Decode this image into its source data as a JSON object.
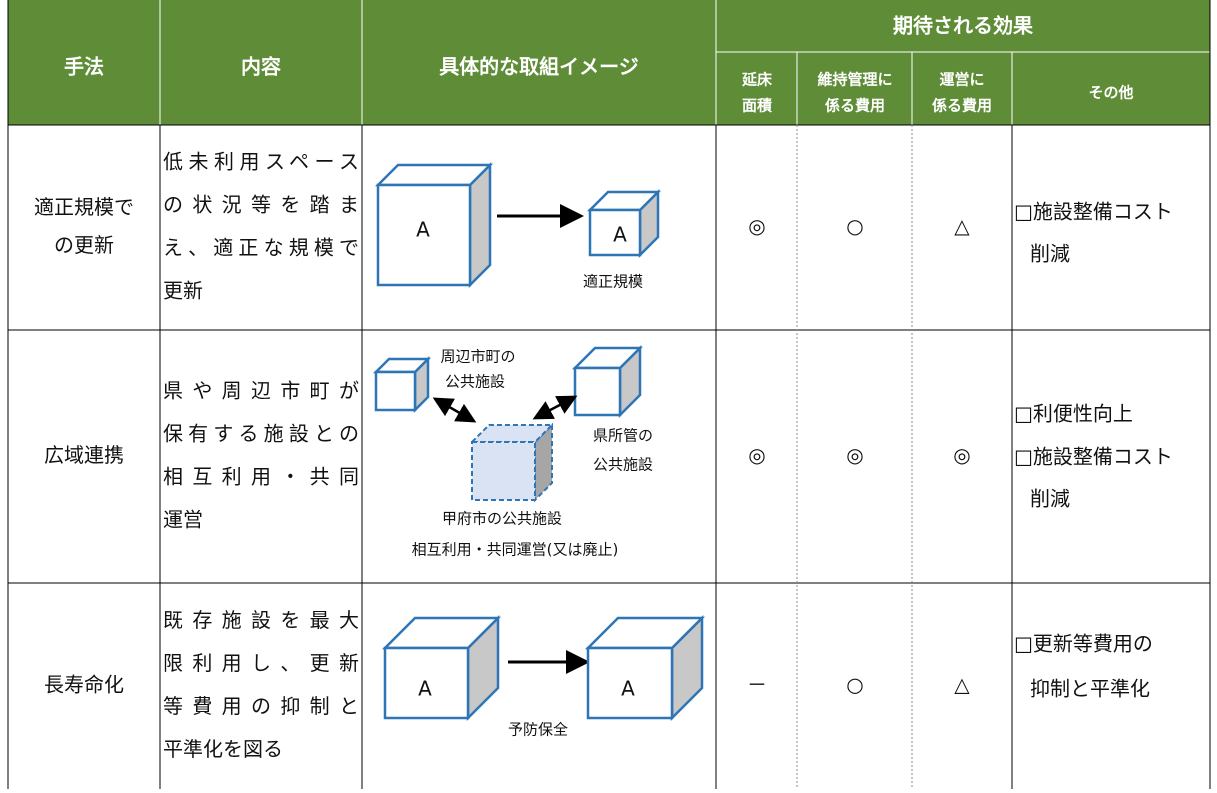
{
  "header": {
    "method": "手法",
    "content": "内容",
    "image": "具体的な取組イメージ",
    "effects": "期待される効果",
    "effect_columns": [
      [
        "延床",
        "面積"
      ],
      [
        "維持管理に",
        "係る費用"
      ],
      [
        "運営に",
        "係る費用"
      ],
      [
        "その他"
      ]
    ]
  },
  "rows": [
    {
      "method": [
        "適正規模で",
        "の更新"
      ],
      "content": [
        "低未利用スペース",
        "の状況等を踏ま",
        "え、適正な規模で",
        "更新"
      ],
      "image_labels": [
        "A",
        "A",
        "適正規模"
      ],
      "floor_area": "◎",
      "maintenance_cost": "○",
      "operating_cost": "△",
      "other": [
        "□施設整備コスト",
        "削減"
      ]
    },
    {
      "method": [
        "広域連携"
      ],
      "content": [
        "県や周辺市町が",
        "保有する施設との",
        "相互利用・共同",
        "運営"
      ],
      "image_labels": [
        "周辺市町の",
        "公共施設",
        "県所管の",
        "公共施設",
        "甲府市の公共施設",
        "相互利用・共同運営(又は廃止)"
      ],
      "floor_area": "◎",
      "maintenance_cost": "◎",
      "operating_cost": "◎",
      "other": [
        "□利便性向上",
        "□施設整備コスト",
        "削減"
      ]
    },
    {
      "method": [
        "長寿命化"
      ],
      "content": [
        "既存施設を最大",
        "限利用し、更新",
        "等費用の抑制と",
        "平準化を図る"
      ],
      "image_labels": [
        "A",
        "A",
        "予防保全"
      ],
      "floor_area": "－",
      "maintenance_cost": "○",
      "operating_cost": "△",
      "other": [
        "□更新等費用の",
        "抑制と平準化"
      ]
    }
  ]
}
